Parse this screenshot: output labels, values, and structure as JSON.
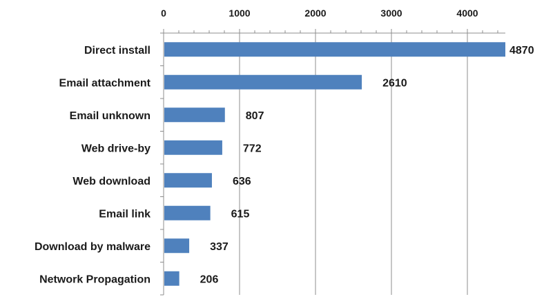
{
  "chart_data": {
    "type": "bar",
    "orientation": "horizontal",
    "title": "",
    "xlabel": "",
    "ylabel": "",
    "categories": [
      "Direct install",
      "Email attachment",
      "Email unknown",
      "Web drive-by",
      "Web download",
      "Email link",
      "Download by malware",
      "Network Propagation"
    ],
    "values": [
      4870,
      2610,
      807,
      772,
      636,
      615,
      337,
      206
    ],
    "xlim": [
      0,
      4500
    ],
    "xticks": [
      0,
      1000,
      2000,
      3000,
      4000
    ],
    "x_axis_position": "top",
    "grid": true,
    "legend": "none",
    "colors": {
      "bar": "#4f81bd",
      "grid": "#8c8c8c",
      "axis": "#8c8c8c",
      "text": "#1a1a1a"
    }
  }
}
